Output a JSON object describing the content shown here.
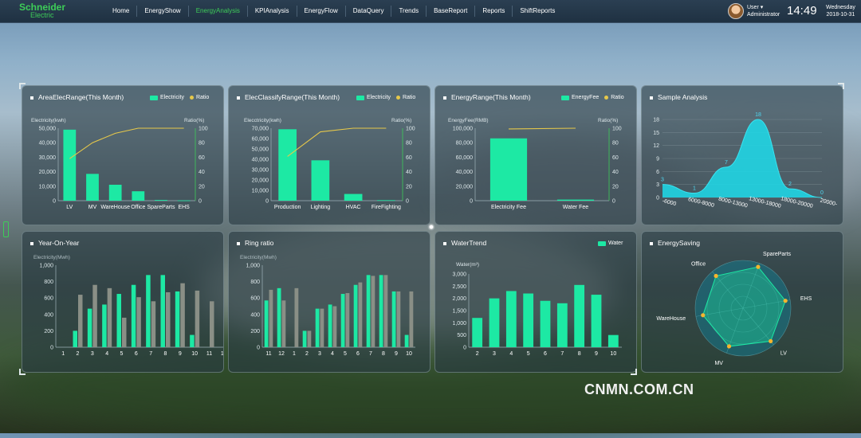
{
  "brand": {
    "line1": "Schneider",
    "line2": "Electric"
  },
  "nav": [
    "Home",
    "EnergyShow",
    "EnergyAnalysis",
    "KPIAnalysis",
    "EnergyFlow",
    "DataQuery",
    "Trends",
    "BaseReport",
    "Reports",
    "ShiftReports"
  ],
  "nav_active": "EnergyAnalysis",
  "user": {
    "name": "User",
    "role": "Administrator"
  },
  "clock": {
    "time": "14:49",
    "weekday": "Wednesday",
    "date": "2018-10-31"
  },
  "watermark": "CNMN.COM.CN",
  "colors": {
    "accent": "#1de9a4",
    "ratio_line": "#e6c84a",
    "nav_active": "#3dcd58",
    "gray_bar": "#8a8f86"
  },
  "panels": {
    "area": {
      "title": "AreaElecRange(This Month)",
      "legend": [
        "Electricity",
        "Ratio"
      ]
    },
    "classify": {
      "title": "ElecClassifyRange(This Month)",
      "legend": [
        "Electricity",
        "Ratio"
      ]
    },
    "energy": {
      "title": "EnergyRange(This Month)",
      "legend": [
        "EnergyFee",
        "Ratio"
      ]
    },
    "sample": {
      "title": "Sample Analysis"
    },
    "yoy": {
      "title": "Year-On-Year"
    },
    "ring": {
      "title": "Ring ratio"
    },
    "water": {
      "title": "WaterTrend",
      "legend": [
        "Water"
      ]
    },
    "saving": {
      "title": "EnergySaving"
    }
  },
  "chart_data": [
    {
      "id": "area",
      "type": "bar",
      "categories": [
        "LV",
        "MV",
        "WareHouse",
        "Office",
        "SpareParts",
        "EHS"
      ],
      "values": [
        49000,
        18500,
        11000,
        6500,
        500,
        200
      ],
      "ratio": [
        58,
        80,
        93,
        100,
        100,
        100
      ],
      "ylabel": "Electricity(kwh)",
      "y2label": "Ratio(%)",
      "ylim": [
        0,
        50000
      ],
      "y2lim": [
        0,
        100
      ],
      "yticks": [
        "0",
        "10,000",
        "20,000",
        "30,000",
        "40,000",
        "50,000"
      ],
      "y2ticks": [
        "0",
        "20",
        "40",
        "60",
        "80",
        "100"
      ]
    },
    {
      "id": "classify",
      "type": "bar",
      "categories": [
        "Production",
        "Lighting",
        "HVAC",
        "FireFighting"
      ],
      "values": [
        69000,
        39000,
        6500,
        500
      ],
      "ratio": [
        61,
        95,
        100,
        100
      ],
      "ylabel": "Elecctricity(kwh)",
      "y2label": "Ratio(%)",
      "ylim": [
        0,
        70000
      ],
      "y2lim": [
        0,
        100
      ],
      "yticks": [
        "0",
        "10,000",
        "20,000",
        "30,000",
        "40,000",
        "50,000",
        "60,000",
        "70,000"
      ],
      "y2ticks": [
        "0",
        "20",
        "40",
        "60",
        "80",
        "100"
      ]
    },
    {
      "id": "energy",
      "type": "bar",
      "categories": [
        "Electricity Fee",
        "Water Fee"
      ],
      "values": [
        86000,
        1500
      ],
      "ratio": [
        99,
        100
      ],
      "ylabel": "EnergyFee(RMB)",
      "y2label": "Ratio(%)",
      "ylim": [
        0,
        100000
      ],
      "y2lim": [
        0,
        100
      ],
      "yticks": [
        "0",
        "20,000",
        "40,000",
        "60,000",
        "80,000",
        "100,000"
      ],
      "y2ticks": [
        "0",
        "20",
        "40",
        "60",
        "80",
        "100"
      ]
    },
    {
      "id": "sample",
      "type": "area",
      "categories": [
        "-6000",
        "6000-8000",
        "8000-13000",
        "13000-18000",
        "18000-20000",
        "20000-"
      ],
      "values": [
        3,
        1,
        7,
        18,
        2,
        0
      ],
      "ylim": [
        0,
        18
      ],
      "yticks": [
        "0",
        "3",
        "6",
        "9",
        "12",
        "15",
        "18"
      ]
    },
    {
      "id": "yoy",
      "type": "bar",
      "categories": [
        "1",
        "2",
        "3",
        "4",
        "5",
        "6",
        "7",
        "8",
        "9",
        "10",
        "11",
        "12"
      ],
      "series": [
        {
          "values": [
            0,
            200,
            470,
            520,
            650,
            760,
            880,
            880,
            680,
            150,
            0,
            0
          ]
        },
        {
          "values": [
            0,
            640,
            760,
            720,
            360,
            610,
            560,
            670,
            780,
            690,
            560,
            710
          ]
        }
      ],
      "ylabel": "Electricity(Mwh)",
      "ylim": [
        0,
        1000
      ],
      "yticks": [
        "0",
        "200",
        "400",
        "600",
        "800",
        "1,000"
      ]
    },
    {
      "id": "ring",
      "type": "bar",
      "categories": [
        "11",
        "12",
        "1",
        "2",
        "3",
        "4",
        "5",
        "6",
        "7",
        "8",
        "9",
        "10"
      ],
      "series": [
        {
          "values": [
            570,
            720,
            0,
            200,
            470,
            520,
            650,
            760,
            880,
            880,
            680,
            150
          ]
        },
        {
          "values": [
            700,
            570,
            720,
            200,
            470,
            500,
            660,
            790,
            870,
            880,
            680,
            680
          ]
        }
      ],
      "ylabel": "Electricity(Mwh)",
      "ylim": [
        0,
        1000
      ],
      "yticks": [
        "0",
        "200",
        "400",
        "600",
        "800",
        "1,000"
      ]
    },
    {
      "id": "water",
      "type": "bar",
      "categories": [
        "2",
        "3",
        "4",
        "5",
        "6",
        "7",
        "8",
        "9",
        "10"
      ],
      "values": [
        1200,
        2000,
        2300,
        2200,
        1900,
        1800,
        2550,
        2150,
        500
      ],
      "ylabel": "Water(m³)",
      "ylim": [
        0,
        3000
      ],
      "yticks": [
        "0",
        "500",
        "1,000",
        "1,500",
        "2,000",
        "2,500",
        "3,000"
      ]
    },
    {
      "id": "saving",
      "type": "radar",
      "indicators": [
        "SpareParts",
        "EHS",
        "LV",
        "MV",
        "WareHouse",
        "Office"
      ],
      "values": [
        0.92,
        0.9,
        0.9,
        0.85,
        0.85,
        0.88
      ]
    }
  ]
}
